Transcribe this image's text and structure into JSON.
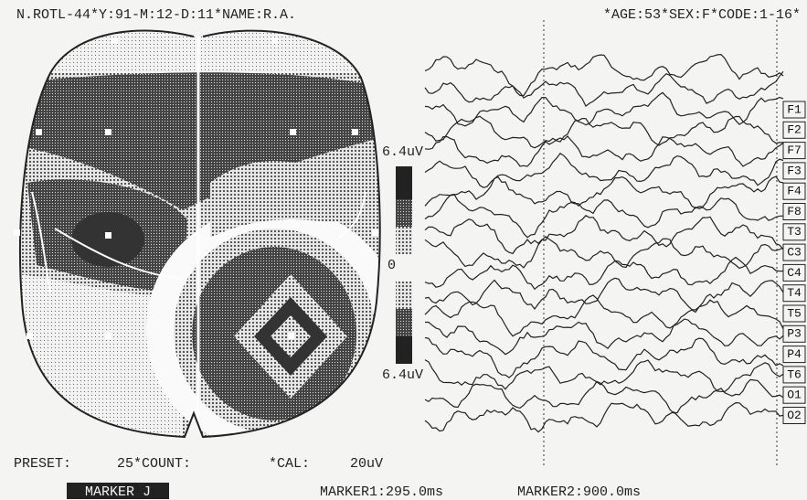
{
  "header": {
    "left": "N.ROTL-44*Y:91-M:12-D:11*NAME:R.A.",
    "right": "*AGE:53*SEX:F*CODE:1-16*"
  },
  "scale": {
    "top": "6.4uV",
    "zero": "0",
    "bottom": "6.4uV"
  },
  "channels": [
    "F1",
    "F2",
    "F7",
    "F3",
    "F4",
    "F8",
    "T3",
    "C3",
    "C4",
    "T4",
    "T5",
    "P3",
    "P4",
    "T6",
    "O1",
    "O2"
  ],
  "footer": {
    "preset": "PRESET:",
    "count": "25*COUNT:",
    "cal": "*CAL:",
    "cal_value": "20uV",
    "marker_button": "MARKER J",
    "marker1": "MARKER1:295.0ms",
    "marker2": "MARKER2:900.0ms"
  }
}
